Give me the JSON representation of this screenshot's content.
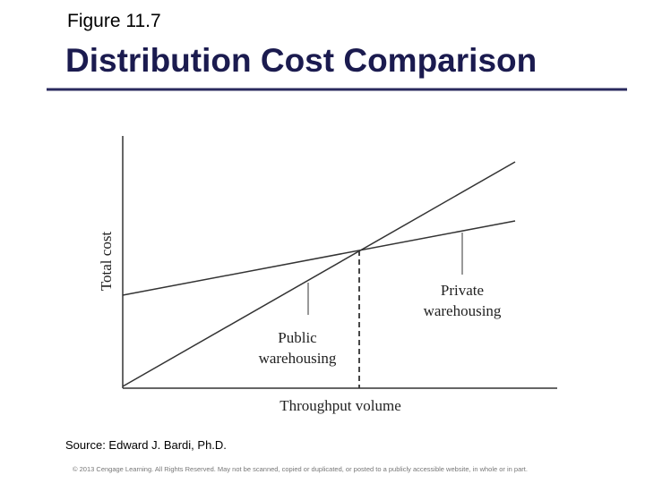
{
  "header": {
    "label": "Figure 11.7",
    "title": "Distribution Cost Comparison"
  },
  "figure": {
    "y_axis_label": "Total cost",
    "x_axis_label": "Throughput volume",
    "lines": [
      {
        "label_lines": [
          "Public",
          "warehousing"
        ]
      },
      {
        "label_lines": [
          "Private",
          "warehousing"
        ]
      }
    ]
  },
  "footer": {
    "source": "Source: Edward J. Bardi, Ph.D.",
    "copyright": "© 2013 Cengage Learning. All Rights Reserved. May not be scanned, copied or duplicated, or posted to a publicly accessible website, in whole or in part."
  }
}
